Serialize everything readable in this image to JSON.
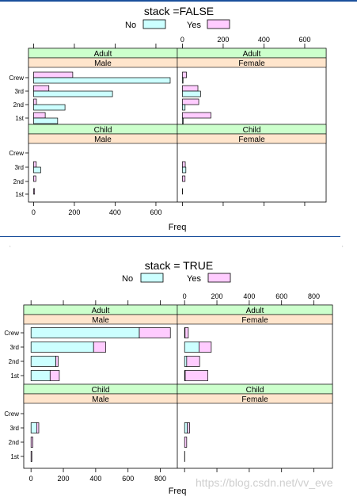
{
  "watermark": "https://blog.csdn.net/vv_eve",
  "colors": {
    "no": "#ccffff",
    "yes": "#ffccff",
    "strip_age": "#ccffcc",
    "strip_sex": "#ffe5cc",
    "axis": "#000000",
    "rule": "#1a4f9c"
  },
  "chart_data": [
    {
      "type": "bar",
      "orientation": "horizontal",
      "stack": false,
      "title": "stack =FALSE",
      "legend": {
        "position": "top",
        "entries": [
          "No",
          "Yes"
        ]
      },
      "xlabel": "Freq",
      "xlim": [
        -25,
        705
      ],
      "xticks": [
        "0",
        "200",
        "400",
        "600"
      ],
      "categories": [
        "Crew",
        "3rd",
        "2nd",
        "1st"
      ],
      "panels": [
        {
          "age": "Adult",
          "sex": "Male",
          "series": [
            {
              "name": "No",
              "values": [
                670,
                387,
                154,
                118
              ]
            },
            {
              "name": "Yes",
              "values": [
                192,
                75,
                14,
                57
              ]
            }
          ]
        },
        {
          "age": "Adult",
          "sex": "Female",
          "series": [
            {
              "name": "No",
              "values": [
                3,
                89,
                13,
                4
              ]
            },
            {
              "name": "Yes",
              "values": [
                20,
                76,
                80,
                140
              ]
            }
          ]
        },
        {
          "age": "Child",
          "sex": "Male",
          "series": [
            {
              "name": "No",
              "values": [
                0,
                35,
                0,
                0
              ]
            },
            {
              "name": "Yes",
              "values": [
                0,
                13,
                11,
                5
              ]
            }
          ]
        },
        {
          "age": "Child",
          "sex": "Female",
          "series": [
            {
              "name": "No",
              "values": [
                0,
                17,
                0,
                0
              ]
            },
            {
              "name": "Yes",
              "values": [
                0,
                14,
                13,
                1
              ]
            }
          ]
        }
      ]
    },
    {
      "type": "bar",
      "orientation": "horizontal",
      "stack": true,
      "title": "stack = TRUE",
      "legend": {
        "position": "top",
        "entries": [
          "No",
          "Yes"
        ]
      },
      "xlabel": "Freq",
      "xlim": [
        -45,
        905
      ],
      "xticks": [
        "0",
        "200",
        "400",
        "600",
        "800"
      ],
      "categories": [
        "Crew",
        "3rd",
        "2nd",
        "1st"
      ],
      "panels": [
        {
          "age": "Adult",
          "sex": "Male",
          "series": [
            {
              "name": "No",
              "values": [
                670,
                387,
                154,
                118
              ]
            },
            {
              "name": "Yes",
              "values": [
                192,
                75,
                14,
                57
              ]
            }
          ]
        },
        {
          "age": "Adult",
          "sex": "Female",
          "series": [
            {
              "name": "No",
              "values": [
                3,
                89,
                13,
                4
              ]
            },
            {
              "name": "Yes",
              "values": [
                20,
                76,
                80,
                140
              ]
            }
          ]
        },
        {
          "age": "Child",
          "sex": "Male",
          "series": [
            {
              "name": "No",
              "values": [
                0,
                35,
                0,
                0
              ]
            },
            {
              "name": "Yes",
              "values": [
                0,
                13,
                11,
                5
              ]
            }
          ]
        },
        {
          "age": "Child",
          "sex": "Female",
          "series": [
            {
              "name": "No",
              "values": [
                0,
                17,
                0,
                0
              ]
            },
            {
              "name": "Yes",
              "values": [
                0,
                14,
                13,
                1
              ]
            }
          ]
        }
      ]
    }
  ]
}
